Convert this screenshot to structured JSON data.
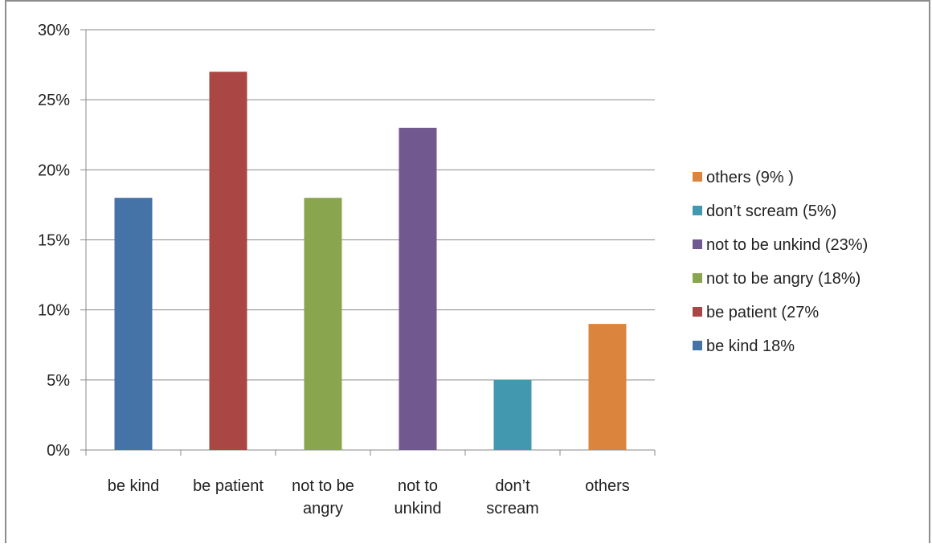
{
  "chart_data": {
    "type": "bar",
    "categories": [
      [
        "be kind"
      ],
      [
        "be patient"
      ],
      [
        "not to be",
        "angry"
      ],
      [
        "not to",
        "unkind"
      ],
      [
        "don’t",
        "scream"
      ],
      [
        "others"
      ]
    ],
    "values": [
      18,
      27,
      18,
      23,
      5,
      9
    ],
    "colors": [
      "#4572a7",
      "#aa4643",
      "#89a54e",
      "#71588f",
      "#4198af",
      "#db843d"
    ],
    "ylim": [
      0,
      30
    ],
    "yticks": [
      0,
      5,
      10,
      15,
      20,
      25,
      30
    ],
    "ytick_labels": [
      "0%",
      "5%",
      "10%",
      "15%",
      "20%",
      "25%",
      "30%"
    ],
    "grid": true,
    "legend_position": "right",
    "legend": [
      {
        "label": "others  (9% )",
        "color": "#db843d"
      },
      {
        "label": "don’t scream  (5%)",
        "color": "#4198af"
      },
      {
        "label": "not to be unkind  (23%)",
        "color": "#71588f"
      },
      {
        "label": "not to be angry  (18%)",
        "color": "#89a54e"
      },
      {
        "label": "be patient  (27%",
        "color": "#aa4643"
      },
      {
        "label": "be kind 18%",
        "color": "#4572a7"
      }
    ]
  }
}
